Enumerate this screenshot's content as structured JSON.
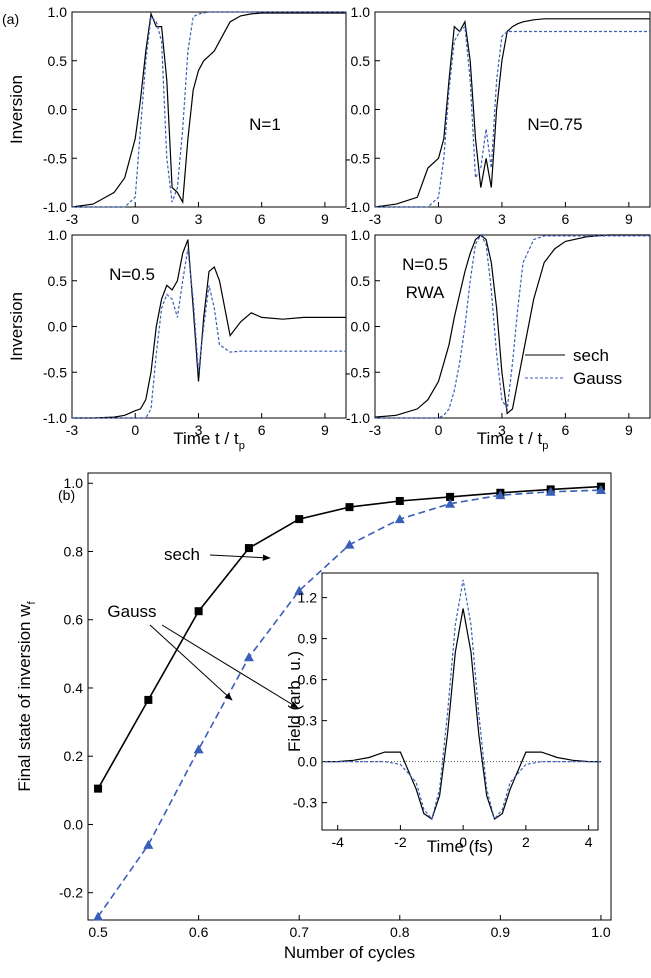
{
  "chart_data": [
    {
      "type": "line",
      "panel_label": "(a)",
      "annotations": [
        "N=1"
      ],
      "y_label": "Inversion",
      "x": [
        -3,
        -2,
        -1,
        -0.5,
        0,
        0.25,
        0.5,
        0.75,
        1,
        1.25,
        1.5,
        1.75,
        2,
        2.25,
        2.5,
        2.75,
        3,
        3.25,
        3.5,
        3.75,
        4,
        4.5,
        5,
        5.5,
        6,
        7,
        8,
        9,
        10
      ],
      "series": [
        {
          "color": "#000000",
          "dash": false,
          "values": [
            -1,
            -0.97,
            -0.85,
            -0.7,
            -0.3,
            0.1,
            0.6,
            0.98,
            0.85,
            0.85,
            0.3,
            -0.8,
            -0.85,
            -0.95,
            -0.3,
            0.2,
            0.4,
            0.5,
            0.55,
            0.6,
            0.7,
            0.9,
            0.96,
            0.98,
            0.99,
            0.99,
            0.99,
            0.99,
            0.99
          ]
        },
        {
          "color": "#3a5fb8",
          "dash": true,
          "values": [
            -1,
            -1,
            -1,
            -1,
            -0.9,
            -0.2,
            0.5,
            0.95,
            0.9,
            0.7,
            -0.5,
            -0.95,
            -0.8,
            -0.2,
            0.6,
            0.95,
            0.98,
            0.99,
            1,
            1,
            1,
            1,
            1,
            1,
            1,
            1,
            1,
            1,
            1
          ]
        }
      ],
      "xlim": [
        -3,
        10
      ],
      "ylim": [
        -1,
        1
      ],
      "xticks": [
        -3,
        0,
        3,
        6,
        9
      ],
      "yticks": [
        {
          "value": -1,
          "label": "-1.0"
        },
        -0.5,
        {
          "value": 0,
          "label": "0.0"
        },
        0.5,
        {
          "value": 1,
          "label": "1.0"
        }
      ]
    },
    {
      "type": "line",
      "annotations": [
        "N=0.75"
      ],
      "x": [
        -3,
        -2,
        -1,
        -0.5,
        0,
        0.25,
        0.5,
        0.75,
        1,
        1.25,
        1.5,
        1.75,
        2,
        2.25,
        2.5,
        2.75,
        3,
        3.25,
        3.5,
        3.75,
        4,
        4.5,
        5,
        5.5,
        6,
        7,
        8,
        9,
        10
      ],
      "series": [
        {
          "color": "#000000",
          "dash": false,
          "values": [
            -1,
            -0.97,
            -0.9,
            -0.6,
            -0.5,
            -0.3,
            0.3,
            0.85,
            0.8,
            0.9,
            0.5,
            -0.3,
            -0.8,
            -0.5,
            -0.8,
            0,
            0.5,
            0.8,
            0.85,
            0.88,
            0.9,
            0.92,
            0.93,
            0.93,
            0.93,
            0.93,
            0.93,
            0.93,
            0.93
          ]
        },
        {
          "color": "#3a5fb8",
          "dash": true,
          "values": [
            -1,
            -1,
            -1,
            -1,
            -0.9,
            -0.5,
            0.2,
            0.7,
            0.8,
            0.85,
            0.3,
            -0.7,
            -0.6,
            -0.2,
            -0.6,
            0.3,
            0.75,
            0.8,
            0.8,
            0.8,
            0.8,
            0.8,
            0.8,
            0.8,
            0.8,
            0.8,
            0.8,
            0.8,
            0.8
          ]
        }
      ],
      "xlim": [
        -3,
        10
      ],
      "ylim": [
        -1,
        1
      ],
      "xticks": [
        -3,
        0,
        3,
        6,
        9
      ],
      "yticks": [
        {
          "value": -1,
          "label": "-1.0"
        },
        -0.5,
        {
          "value": 0,
          "label": "0.0"
        },
        0.5,
        {
          "value": 1,
          "label": "1.0"
        }
      ]
    },
    {
      "type": "line",
      "annotations": [
        "N=0.5"
      ],
      "y_label": "Inversion",
      "x_label": {
        "text": "Time t / t",
        "sub": "p"
      },
      "x": [
        -3,
        -2,
        -1,
        -0.5,
        0,
        0.25,
        0.5,
        0.75,
        1,
        1.25,
        1.5,
        1.75,
        2,
        2.25,
        2.5,
        2.75,
        3,
        3.25,
        3.5,
        3.75,
        4,
        4.5,
        5,
        5.5,
        6,
        7,
        8,
        9,
        10
      ],
      "series": [
        {
          "color": "#000000",
          "dash": false,
          "values": [
            -1,
            -1,
            -0.99,
            -0.97,
            -0.92,
            -0.9,
            -0.8,
            -0.5,
            0,
            0.3,
            0.45,
            0.4,
            0.5,
            0.8,
            0.95,
            0.2,
            -0.6,
            0.1,
            0.6,
            0.65,
            0.5,
            -0.1,
            0.05,
            0.15,
            0.1,
            0.08,
            0.1,
            0.1,
            0.1
          ]
        },
        {
          "color": "#3a5fb8",
          "dash": true,
          "values": [
            -1,
            -1,
            -1,
            -1,
            -1,
            -1,
            -1,
            -0.9,
            -0.3,
            0.2,
            0.35,
            0.3,
            0.1,
            0.5,
            0.85,
            0.3,
            -0.5,
            0,
            0.45,
            0.2,
            -0.2,
            -0.28,
            -0.27,
            -0.27,
            -0.27,
            -0.27,
            -0.27,
            -0.27,
            -0.27
          ]
        }
      ],
      "xlim": [
        -3,
        10
      ],
      "ylim": [
        -1,
        1
      ],
      "xticks": [
        -3,
        0,
        3,
        6,
        9
      ],
      "yticks": [
        {
          "value": -1,
          "label": "-1.0"
        },
        -0.5,
        {
          "value": 0,
          "label": "0.0"
        },
        0.5,
        {
          "value": 1,
          "label": "1.0"
        }
      ]
    },
    {
      "type": "line",
      "annotations": [
        "N=0.5",
        "RWA"
      ],
      "x_label": {
        "text": "Time t / t",
        "sub": "p"
      },
      "legend": "right",
      "x": [
        -3,
        -2,
        -1,
        -0.5,
        0,
        0.25,
        0.5,
        0.75,
        1,
        1.25,
        1.5,
        1.75,
        2,
        2.25,
        2.5,
        2.75,
        3,
        3.25,
        3.5,
        3.75,
        4,
        4.5,
        5,
        5.5,
        6,
        7,
        8,
        9,
        10
      ],
      "series": [
        {
          "name": "sech",
          "color": "#000000",
          "dash": false,
          "values": [
            -0.99,
            -0.97,
            -0.9,
            -0.8,
            -0.6,
            -0.4,
            -0.2,
            0.1,
            0.35,
            0.6,
            0.8,
            0.95,
            1,
            0.95,
            0.7,
            0.2,
            -0.5,
            -0.95,
            -0.9,
            -0.6,
            -0.3,
            0.3,
            0.7,
            0.85,
            0.93,
            0.98,
            1,
            1,
            1
          ]
        },
        {
          "name": "Gauss",
          "color": "#3a5fb8",
          "dash": true,
          "values": [
            -1,
            -1,
            -1,
            -1,
            -1,
            -0.97,
            -0.9,
            -0.7,
            -0.4,
            0,
            0.5,
            0.9,
            1,
            0.9,
            0.4,
            -0.3,
            -0.8,
            -0.9,
            -0.4,
            0.2,
            0.7,
            0.95,
            0.99,
            0.99,
            0.99,
            0.99,
            0.99,
            0.99,
            0.99
          ]
        }
      ],
      "xlim": [
        -3,
        10
      ],
      "ylim": [
        -1,
        1
      ],
      "xticks": [
        -3,
        0,
        3,
        6,
        9
      ],
      "yticks": [
        {
          "value": -1,
          "label": "-1.0"
        },
        -0.5,
        {
          "value": 0,
          "label": "0.0"
        },
        0.5,
        {
          "value": 1,
          "label": "1.0"
        }
      ]
    },
    {
      "type": "line",
      "panel_label": "(b)",
      "annotations": [
        "sech",
        "Gauss"
      ],
      "y_label": {
        "text": "Final state of inversion w",
        "sub": "f"
      },
      "x_label": {
        "text": "Number of cycles"
      },
      "x": [
        0.5,
        0.55,
        0.6,
        0.65,
        0.7,
        0.75,
        0.8,
        0.85,
        0.9,
        0.95,
        1.0
      ],
      "series": [
        {
          "color": "#000000",
          "dash": false,
          "marker": "square",
          "values": [
            0.105,
            0.365,
            0.625,
            0.81,
            0.895,
            0.93,
            0.948,
            0.96,
            0.972,
            0.982,
            0.99
          ]
        },
        {
          "color": "#3a5fb8",
          "dash": true,
          "marker": "triangle",
          "values": [
            -0.27,
            -0.06,
            0.22,
            0.49,
            0.685,
            0.82,
            0.895,
            0.94,
            0.965,
            0.975,
            0.98
          ]
        }
      ],
      "xlim": [
        0.49,
        1.01
      ],
      "ylim": [
        -0.28,
        1.03
      ],
      "xticks": [
        0.5,
        0.6,
        0.7,
        0.8,
        0.9,
        {
          "value": 1,
          "label": "1.0"
        }
      ],
      "yticks": [
        -0.2,
        {
          "value": 0,
          "label": "0.0"
        },
        0.2,
        0.4,
        0.6,
        0.8,
        {
          "value": 1,
          "label": "1.0"
        }
      ]
    },
    {
      "type": "line",
      "y_label": {
        "text": "Field (arb. u.)"
      },
      "x_label": {
        "text": "Time (fs)"
      },
      "zero_line": true,
      "x": [
        -4.4,
        -4,
        -3.5,
        -3,
        -2.5,
        -2,
        -1.5,
        -1.25,
        -1,
        -0.75,
        -0.5,
        -0.25,
        0,
        0.25,
        0.5,
        0.75,
        1,
        1.25,
        1.5,
        2,
        2.5,
        3,
        3.5,
        4,
        4.4
      ],
      "series": [
        {
          "color": "#000000",
          "dash": false,
          "values": [
            0,
            0,
            0.01,
            0.03,
            0.07,
            0.07,
            -0.2,
            -0.38,
            -0.42,
            -0.25,
            0.2,
            0.8,
            1.12,
            0.8,
            0.2,
            -0.25,
            -0.42,
            -0.38,
            -0.2,
            0.07,
            0.07,
            0.03,
            0.01,
            0,
            0
          ]
        },
        {
          "color": "#3a5fb8",
          "dash": true,
          "values": [
            0,
            0,
            0,
            0,
            0,
            -0.02,
            -0.15,
            -0.35,
            -0.42,
            -0.2,
            0.35,
            1.0,
            1.33,
            1.0,
            0.35,
            -0.2,
            -0.42,
            -0.35,
            -0.15,
            -0.02,
            0,
            0,
            0,
            0,
            0
          ]
        }
      ],
      "xlim": [
        -4.5,
        4.3
      ],
      "ylim": [
        -0.5,
        1.38
      ],
      "xticks": [
        -4,
        -2,
        0,
        2,
        4
      ],
      "yticks": [
        -0.3,
        {
          "value": 0,
          "label": "0.0"
        },
        0.3,
        0.6,
        0.9,
        1.2
      ]
    }
  ]
}
